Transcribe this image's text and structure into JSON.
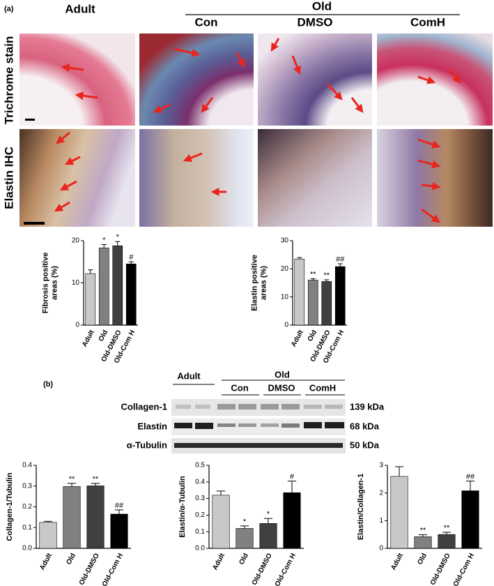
{
  "panel_a": {
    "label": "(a)",
    "adult": "Adult",
    "old": "Old",
    "subgroups": [
      "Con",
      "DMSO",
      "ComH"
    ],
    "rows": [
      "Trichrome stain",
      "Elastin IHC"
    ]
  },
  "panel_b": {
    "label": "(b)",
    "adult": "Adult",
    "old": "Old",
    "subgroups": [
      "Con",
      "DMSO",
      "ComH"
    ],
    "proteins": [
      {
        "name": "Collagen-1",
        "size": "139 kDa"
      },
      {
        "name": "Elastin",
        "size": "68 kDa"
      },
      {
        "name": "α-Tubulin",
        "size": "50 kDa"
      }
    ]
  },
  "chart_data": [
    {
      "type": "bar",
      "y_label": [
        "Fibrosis positive",
        "areas (%)"
      ],
      "categories": [
        "Adult",
        "Old",
        "Old-DMSO",
        "Old-Com H"
      ],
      "values": [
        12.2,
        18.3,
        18.8,
        14.5
      ],
      "errors": [
        0.9,
        0.8,
        1.0,
        0.5
      ],
      "annotations": [
        null,
        "*",
        "*",
        "#"
      ],
      "colors": [
        "#c8c8c8",
        "#808080",
        "#404040",
        "#000000"
      ],
      "ylim": [
        0,
        20
      ],
      "yticks": [
        0,
        10,
        20
      ]
    },
    {
      "type": "bar",
      "y_label": [
        "Elastin positive",
        "areas (%)"
      ],
      "categories": [
        "Adult",
        "Old",
        "Old-DMSO",
        "Old-Com H"
      ],
      "values": [
        23.5,
        16.0,
        15.5,
        20.8
      ],
      "errors": [
        0.5,
        0.5,
        0.6,
        1.0
      ],
      "annotations": [
        null,
        "**",
        "**",
        "##"
      ],
      "colors": [
        "#c8c8c8",
        "#808080",
        "#404040",
        "#000000"
      ],
      "ylim": [
        0,
        30
      ],
      "yticks": [
        0,
        10,
        20,
        30
      ]
    },
    {
      "type": "bar",
      "y_label": [
        "Collagen-1/Tubulin"
      ],
      "categories": [
        "Adult",
        "Old",
        "Old-DMSO",
        "Old-Com H"
      ],
      "values": [
        0.125,
        0.298,
        0.301,
        0.165
      ],
      "errors": [
        0.005,
        0.015,
        0.012,
        0.02
      ],
      "annotations": [
        null,
        "**",
        "**",
        "##"
      ],
      "colors": [
        "#c8c8c8",
        "#808080",
        "#404040",
        "#000000"
      ],
      "ylim": [
        0,
        0.4
      ],
      "yticks": [
        {
          "value": 0,
          "label": "0.0"
        },
        0.1,
        0.2,
        0.3,
        0.4
      ]
    },
    {
      "type": "bar",
      "y_label": [
        "Elastin/α-Tubulin"
      ],
      "categories": [
        "Adult",
        "Old",
        "Old-DMSO",
        "Old-Com H"
      ],
      "values": [
        0.32,
        0.12,
        0.15,
        0.335
      ],
      "errors": [
        0.025,
        0.015,
        0.03,
        0.07
      ],
      "annotations": [
        null,
        "*",
        "*",
        "#"
      ],
      "colors": [
        "#c8c8c8",
        "#808080",
        "#404040",
        "#000000"
      ],
      "ylim": [
        0,
        0.5
      ],
      "yticks": [
        {
          "value": 0,
          "label": "0.0"
        },
        0.1,
        0.2,
        0.3,
        0.4,
        0.5
      ]
    },
    {
      "type": "bar",
      "y_label": [
        "Elastin/Collagen-1"
      ],
      "categories": [
        "Adult",
        "Old",
        "Old-DMSO",
        "Old-Com H"
      ],
      "values": [
        2.6,
        0.42,
        0.5,
        2.08
      ],
      "errors": [
        0.35,
        0.07,
        0.08,
        0.35
      ],
      "annotations": [
        null,
        "**",
        "**",
        "##"
      ],
      "colors": [
        "#c8c8c8",
        "#808080",
        "#404040",
        "#000000"
      ],
      "ylim": [
        0,
        3
      ],
      "yticks": [
        0,
        1,
        2,
        3
      ]
    }
  ]
}
